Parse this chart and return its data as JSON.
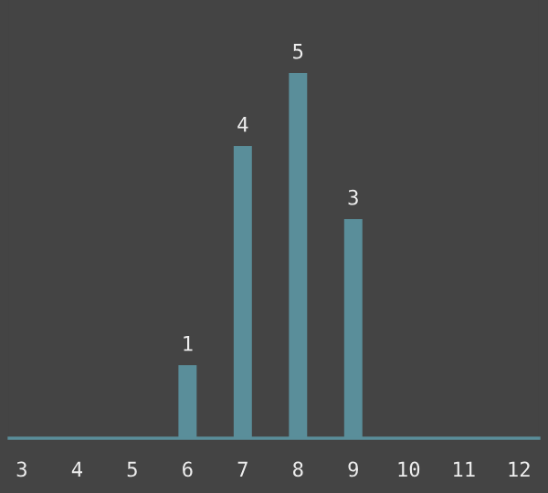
{
  "chart_data": {
    "type": "bar",
    "x": [
      6,
      7,
      8,
      9
    ],
    "values": [
      1,
      4,
      5,
      3
    ],
    "color": "#5a8e9a",
    "data_labels": true,
    "xlim": [
      2.77,
      12.36
    ],
    "xticks": [
      3,
      4,
      5,
      6,
      7,
      8,
      9,
      10,
      11,
      12
    ],
    "ylim": [
      0,
      6
    ],
    "tick_labels": "x",
    "grid": false
  }
}
